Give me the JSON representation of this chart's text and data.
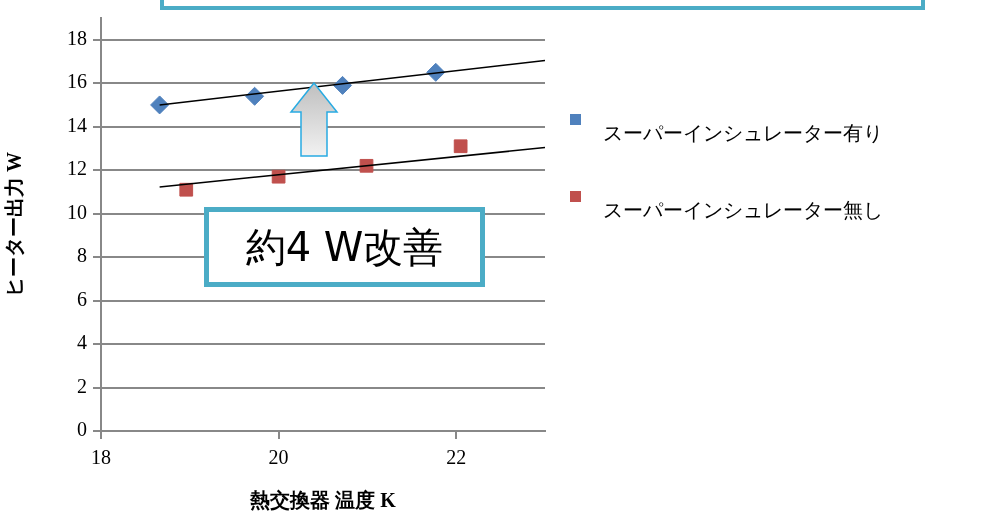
{
  "chart_data": {
    "type": "scatter",
    "xlabel": "熱交換器 温度 K",
    "ylabel": "ヒーター出力 W",
    "xlim": [
      18,
      23
    ],
    "xticks": [
      18,
      20,
      22
    ],
    "ylim": [
      0,
      19
    ],
    "yticks": [
      0,
      2,
      4,
      6,
      8,
      10,
      12,
      14,
      16,
      18
    ],
    "grid": "y",
    "legend": "right",
    "annotations": [
      "約4 W改善"
    ],
    "series": [
      {
        "name": "スーパーインシュレーター有り",
        "color": "#4f81bd",
        "marker": "diamond",
        "x": [
          18.66,
          19.73,
          20.72,
          21.77
        ],
        "values": [
          15.0,
          15.4,
          15.9,
          16.5
        ]
      },
      {
        "name": "スーパーインシュレーター無し",
        "color": "#c0504d",
        "marker": "square",
        "x": [
          18.96,
          20.0,
          20.99,
          22.05
        ],
        "values": [
          11.1,
          11.7,
          12.2,
          13.1
        ]
      },
      {
        "type": "line",
        "color": "#000000",
        "marker": "none",
        "x": [
          18.66,
          23
        ],
        "values": [
          15.0,
          17.05
        ]
      },
      {
        "type": "line",
        "color": "#000000",
        "marker": "none",
        "x": [
          18.66,
          23
        ],
        "values": [
          11.23,
          13.04
        ]
      }
    ]
  }
}
